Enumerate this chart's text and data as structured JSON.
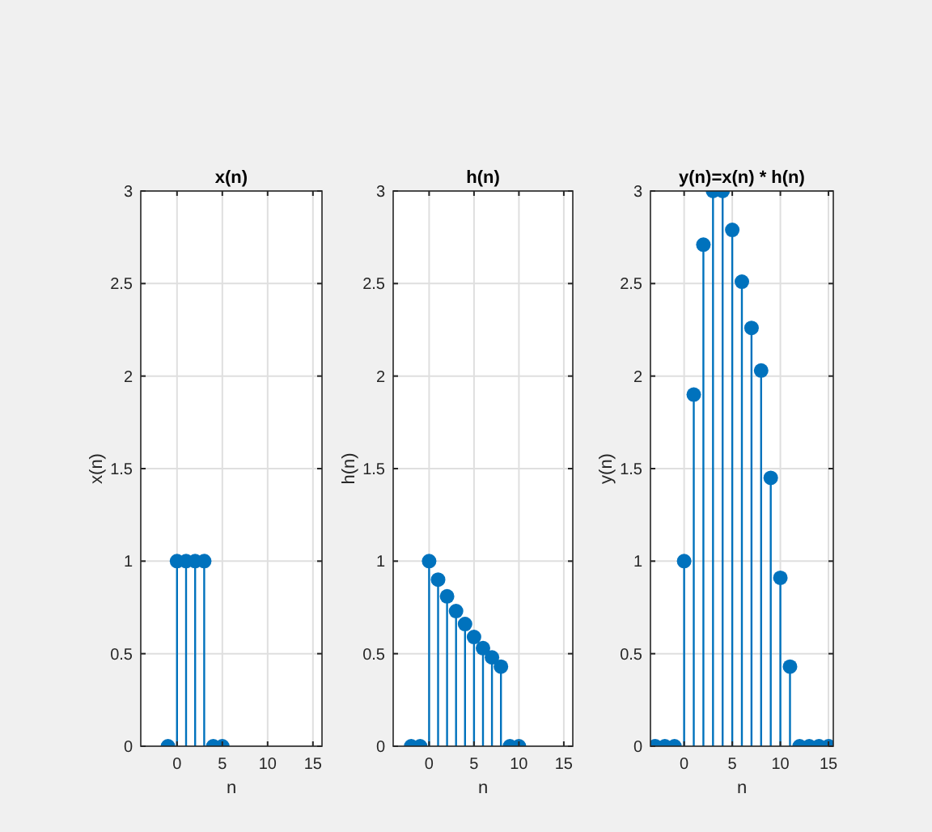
{
  "chart_data": [
    {
      "type": "lollipop",
      "title": "x(n)",
      "xlabel": "n",
      "ylabel": "x(n)",
      "x": [
        -1,
        0,
        1,
        2,
        3,
        4,
        5
      ],
      "series": [
        {
          "color": "#0072bd",
          "values": [
            0,
            1,
            1,
            1,
            1,
            0,
            0
          ]
        }
      ],
      "xlim": [
        -4,
        16
      ],
      "xticks": [
        0,
        5,
        10,
        15
      ],
      "ylim": [
        0,
        3
      ],
      "yticks": [
        0,
        0.5,
        1,
        1.5,
        2,
        2.5,
        3
      ],
      "grid": true,
      "marker": "circle"
    },
    {
      "type": "lollipop",
      "title": "h(n)",
      "xlabel": "n",
      "ylabel": "h(n)",
      "x": [
        -2,
        -1,
        0,
        1,
        2,
        3,
        4,
        5,
        6,
        7,
        8,
        9,
        10
      ],
      "series": [
        {
          "color": "#0072bd",
          "values": [
            0,
            0,
            1,
            0.9,
            0.81,
            0.73,
            0.66,
            0.59,
            0.53,
            0.48,
            0.43,
            0,
            0
          ]
        }
      ],
      "xlim": [
        -4,
        16
      ],
      "xticks": [
        0,
        5,
        10,
        15
      ],
      "ylim": [
        0,
        3
      ],
      "yticks": [
        0,
        0.5,
        1,
        1.5,
        2,
        2.5,
        3
      ],
      "grid": true,
      "marker": "circle"
    },
    {
      "type": "lollipop",
      "title": "y(n)=x(n) * h(n)",
      "xlabel": "n",
      "ylabel": "y(n)",
      "x": [
        -3,
        -2,
        -1,
        0,
        1,
        2,
        3,
        4,
        5,
        6,
        7,
        8,
        9,
        10,
        11,
        12,
        13,
        14,
        15
      ],
      "series": [
        {
          "color": "#0072bd",
          "values": [
            0,
            0,
            0,
            1,
            1.9,
            2.71,
            3,
            3,
            2.79,
            2.51,
            2.26,
            2.03,
            1.45,
            0.91,
            0.43,
            0,
            0,
            0,
            0
          ]
        }
      ],
      "xlim": [
        -3.5,
        15.5
      ],
      "xticks": [
        0,
        5,
        10,
        15
      ],
      "ylim": [
        0,
        3
      ],
      "yticks": [
        0,
        0.5,
        1,
        1.5,
        2,
        2.5,
        3
      ],
      "grid": true,
      "marker": "circle"
    }
  ]
}
